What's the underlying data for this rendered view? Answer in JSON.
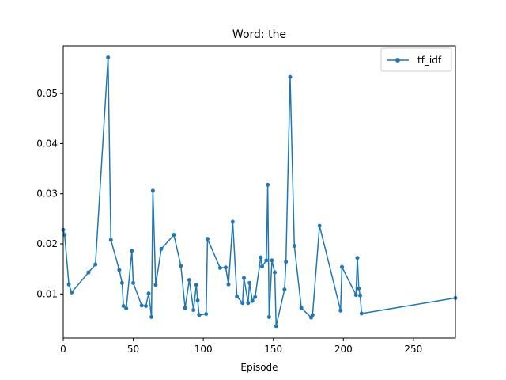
{
  "chart_data": {
    "type": "line",
    "title": "Word: the",
    "xlabel": "Episode",
    "ylabel": "",
    "xlim": [
      0,
      280
    ],
    "ylim": [
      0.0012,
      0.0595
    ],
    "xticks": [
      0,
      50,
      100,
      150,
      200,
      250
    ],
    "yticks": [
      0.01,
      0.02,
      0.03,
      0.04,
      0.05
    ],
    "ytick_labels": [
      "0.01",
      "0.02",
      "0.03",
      "0.04",
      "0.05"
    ],
    "grid": false,
    "legend": "top-right",
    "color": "#1f77b4",
    "series": [
      {
        "name": "tf_idf",
        "marker": "circle",
        "points": [
          [
            0,
            0.0228
          ],
          [
            1,
            0.0218
          ],
          [
            4,
            0.0119
          ],
          [
            6,
            0.0103
          ],
          [
            18,
            0.0143
          ],
          [
            23,
            0.0159
          ],
          [
            32,
            0.0572
          ],
          [
            34,
            0.0208
          ],
          [
            40,
            0.0148
          ],
          [
            42,
            0.0122
          ],
          [
            43,
            0.0076
          ],
          [
            45,
            0.0071
          ],
          [
            49,
            0.0186
          ],
          [
            50,
            0.0122
          ],
          [
            56,
            0.0077
          ],
          [
            59,
            0.0076
          ],
          [
            61,
            0.0101
          ],
          [
            63,
            0.0054
          ],
          [
            64,
            0.0306
          ],
          [
            66,
            0.0118
          ],
          [
            70,
            0.019
          ],
          [
            79,
            0.0218
          ],
          [
            84,
            0.0156
          ],
          [
            87,
            0.0072
          ],
          [
            90,
            0.0128
          ],
          [
            93,
            0.0068
          ],
          [
            95,
            0.0118
          ],
          [
            96,
            0.0087
          ],
          [
            97,
            0.0058
          ],
          [
            102,
            0.006
          ],
          [
            103,
            0.021
          ],
          [
            112,
            0.0152
          ],
          [
            116,
            0.0153
          ],
          [
            118,
            0.0119
          ],
          [
            121,
            0.0244
          ],
          [
            124,
            0.0095
          ],
          [
            128,
            0.0082
          ],
          [
            129,
            0.0132
          ],
          [
            132,
            0.0082
          ],
          [
            133,
            0.0122
          ],
          [
            135,
            0.0086
          ],
          [
            137,
            0.0094
          ],
          [
            141,
            0.0173
          ],
          [
            142,
            0.0155
          ],
          [
            145,
            0.0167
          ],
          [
            146,
            0.0318
          ],
          [
            147,
            0.0054
          ],
          [
            149,
            0.0167
          ],
          [
            151,
            0.0143
          ],
          [
            152,
            0.0036
          ],
          [
            158,
            0.0109
          ],
          [
            159,
            0.0164
          ],
          [
            162,
            0.0533
          ],
          [
            165,
            0.0196
          ],
          [
            170,
            0.0072
          ],
          [
            177,
            0.0053
          ],
          [
            178,
            0.0058
          ],
          [
            183,
            0.0236
          ],
          [
            198,
            0.0067
          ],
          [
            199,
            0.0154
          ],
          [
            209,
            0.0098
          ],
          [
            210,
            0.0172
          ],
          [
            211,
            0.0111
          ],
          [
            212,
            0.0097
          ],
          [
            213,
            0.0061
          ],
          [
            280,
            0.0092
          ]
        ]
      }
    ]
  }
}
